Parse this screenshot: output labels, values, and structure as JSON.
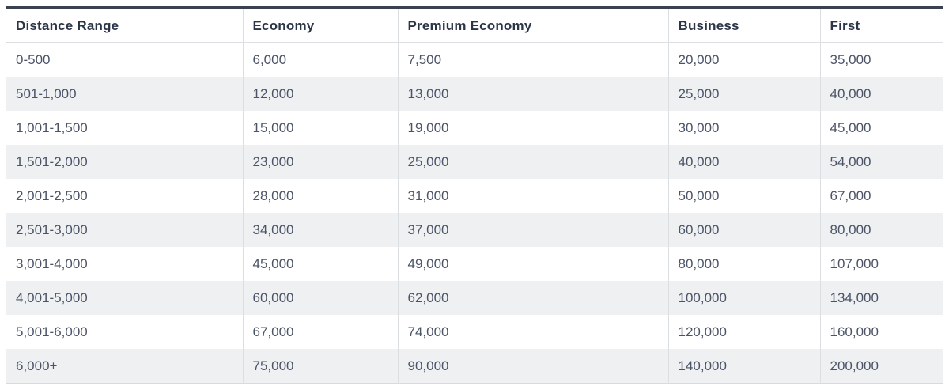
{
  "table": {
    "columns": [
      {
        "id": "distance-range",
        "label": "Distance Range"
      },
      {
        "id": "economy",
        "label": "Economy"
      },
      {
        "id": "premium-economy",
        "label": "Premium Economy"
      },
      {
        "id": "business",
        "label": "Business"
      },
      {
        "id": "first",
        "label": "First"
      }
    ],
    "rows": [
      [
        "0-500",
        "6,000",
        "7,500",
        "20,000",
        "35,000"
      ],
      [
        "501-1,000",
        "12,000",
        "13,000",
        "25,000",
        "40,000"
      ],
      [
        "1,001-1,500",
        "15,000",
        "19,000",
        "30,000",
        "45,000"
      ],
      [
        "1,501-2,000",
        "23,000",
        "25,000",
        "40,000",
        "54,000"
      ],
      [
        "2,001-2,500",
        "28,000",
        "31,000",
        "50,000",
        "67,000"
      ],
      [
        "2,501-3,000",
        "34,000",
        "37,000",
        "60,000",
        "80,000"
      ],
      [
        "3,001-4,000",
        "45,000",
        "49,000",
        "80,000",
        "107,000"
      ],
      [
        "4,001-5,000",
        "60,000",
        "62,000",
        "100,000",
        "134,000"
      ],
      [
        "5,001-6,000",
        "67,000",
        "74,000",
        "120,000",
        "160,000"
      ],
      [
        "6,000+",
        "75,000",
        "90,000",
        "140,000",
        "200,000"
      ]
    ]
  },
  "chart_data": {
    "type": "table",
    "title": "",
    "categories": [
      "0-500",
      "501-1,000",
      "1,001-1,500",
      "1,501-2,000",
      "2,001-2,500",
      "2,501-3,000",
      "3,001-4,000",
      "4,001-5,000",
      "5,001-6,000",
      "6,000+"
    ],
    "category_label": "Distance Range",
    "series": [
      {
        "name": "Economy",
        "values": [
          6000,
          12000,
          15000,
          23000,
          28000,
          34000,
          45000,
          60000,
          67000,
          75000
        ]
      },
      {
        "name": "Premium Economy",
        "values": [
          7500,
          13000,
          19000,
          25000,
          31000,
          37000,
          49000,
          62000,
          74000,
          90000
        ]
      },
      {
        "name": "Business",
        "values": [
          20000,
          25000,
          30000,
          40000,
          50000,
          60000,
          80000,
          100000,
          120000,
          140000
        ]
      },
      {
        "name": "First",
        "values": [
          35000,
          40000,
          45000,
          54000,
          67000,
          80000,
          107000,
          134000,
          160000,
          200000
        ]
      }
    ]
  },
  "colors": {
    "top_border": "#3a4150",
    "header_text": "#2c3547",
    "cell_text": "#4b5366",
    "stripe_bg": "#eef0f2",
    "grid_line": "#dcdfe2",
    "bottom_border": "#d8dbde"
  }
}
